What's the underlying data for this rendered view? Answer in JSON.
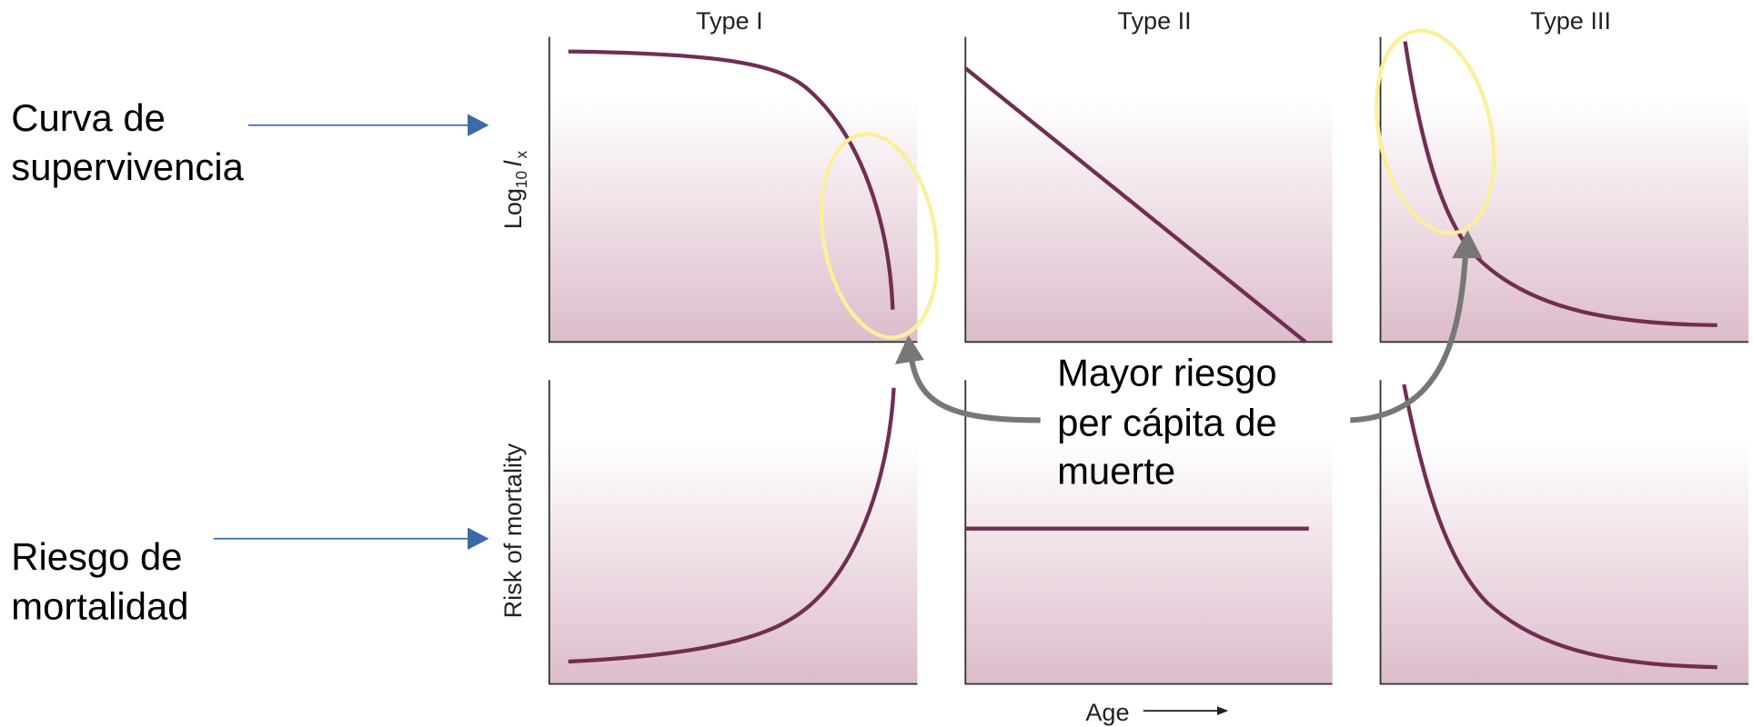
{
  "panels": [
    {
      "title": "Type I"
    },
    {
      "title": "Type II"
    },
    {
      "title": "Type III"
    }
  ],
  "y_axis_top": {
    "base": "Log",
    "base_sub": "10",
    "var": "l",
    "var_sub": "x"
  },
  "y_axis_bottom": "Risk of mortality",
  "x_axis": "Age",
  "annotations": {
    "survival": {
      "lines": [
        "Curva de",
        "supervivencia"
      ]
    },
    "mortality": {
      "lines": [
        "Riesgo de",
        "mortalidad"
      ]
    },
    "risk": {
      "lines": [
        "Mayor riesgo",
        "per cápita de",
        "muerte"
      ]
    }
  }
}
